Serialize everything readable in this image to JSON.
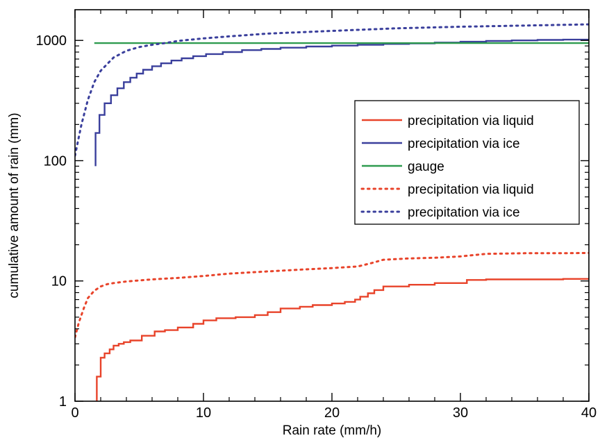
{
  "chart_data": {
    "type": "line",
    "title": "",
    "xlabel": "Rain rate (mm/h)",
    "ylabel": "cumulative amount of rain (mm)",
    "xlim": [
      0,
      40
    ],
    "ylim": [
      1,
      1800
    ],
    "yscale": "log",
    "x_ticks": [
      "0",
      "10",
      "20",
      "30",
      "40"
    ],
    "y_ticks": [
      "1",
      "10",
      "100",
      "1000"
    ],
    "grid": false,
    "legend_position": "center-right",
    "series": [
      {
        "name": "precipitation via liquid",
        "color": "#e8432a",
        "style": "solid",
        "step": true,
        "x": [
          1.7,
          1.7,
          2.0,
          2.3,
          2.7,
          3.0,
          3.4,
          3.8,
          4.3,
          5.2,
          6.2,
          7.0,
          8.0,
          9.2,
          10.0,
          11.0,
          12.5,
          14.0,
          15.0,
          16.0,
          17.5,
          18.5,
          20.0,
          21.0,
          21.8,
          22.2,
          22.8,
          23.3,
          24.0,
          26.0,
          28.0,
          30.5,
          32.0,
          34.0,
          36.0,
          38.0,
          40.0
        ],
        "y": [
          1.0,
          1.6,
          2.3,
          2.5,
          2.7,
          2.9,
          3.0,
          3.1,
          3.2,
          3.5,
          3.8,
          3.9,
          4.1,
          4.4,
          4.7,
          4.9,
          5.0,
          5.2,
          5.5,
          5.9,
          6.1,
          6.3,
          6.5,
          6.7,
          7.0,
          7.4,
          7.9,
          8.4,
          9.0,
          9.3,
          9.6,
          10.2,
          10.3,
          10.3,
          10.3,
          10.4,
          10.5
        ]
      },
      {
        "name": "precipitation via ice",
        "color": "#3a3f9c",
        "style": "solid",
        "step": true,
        "x": [
          1.6,
          1.6,
          1.9,
          2.3,
          2.8,
          3.3,
          3.8,
          4.3,
          4.8,
          5.3,
          6.0,
          6.7,
          7.5,
          8.3,
          9.2,
          10.2,
          11.5,
          13.0,
          14.5,
          16.0,
          18.0,
          20.0,
          22.0,
          24.0,
          26.0,
          28.0,
          30.0,
          32.0,
          34.0,
          36.0,
          38.0,
          40.0
        ],
        "y": [
          90,
          170,
          240,
          300,
          350,
          400,
          450,
          490,
          530,
          570,
          610,
          645,
          680,
          710,
          740,
          770,
          800,
          830,
          850,
          870,
          890,
          905,
          920,
          935,
          945,
          960,
          975,
          990,
          1000,
          1010,
          1015,
          1020
        ]
      },
      {
        "name": "gauge",
        "color": "#2e9b4f",
        "style": "solid",
        "step": false,
        "x": [
          1.5,
          40.0
        ],
        "y": [
          950,
          950
        ]
      },
      {
        "name": "precipitation via liquid",
        "color": "#e8432a",
        "style": "dotted",
        "step": false,
        "x": [
          0.0,
          0.3,
          0.7,
          1.0,
          1.5,
          2.0,
          2.5,
          3.0,
          4.0,
          5.0,
          6.0,
          8.0,
          10.0,
          12.0,
          15.0,
          18.0,
          20.0,
          22.0,
          23.0,
          24.0,
          26.0,
          28.0,
          30.0,
          32.0,
          35.0,
          38.0,
          40.0
        ],
        "y": [
          3.4,
          4.5,
          6.0,
          7.2,
          8.3,
          9.0,
          9.4,
          9.6,
          9.9,
          10.1,
          10.3,
          10.6,
          11.0,
          11.5,
          12.0,
          12.5,
          12.8,
          13.2,
          14.0,
          15.0,
          15.4,
          15.6,
          16.0,
          16.8,
          17.0,
          17.0,
          17.1
        ]
      },
      {
        "name": "precipitation via ice",
        "color": "#3a3f9c",
        "style": "dotted",
        "step": false,
        "x": [
          0.0,
          0.2,
          0.5,
          1.0,
          1.5,
          2.0,
          3.0,
          4.0,
          5.0,
          6.0,
          7.0,
          8.0,
          10.0,
          12.0,
          15.0,
          20.0,
          25.0,
          30.0,
          35.0,
          40.0
        ],
        "y": [
          110,
          140,
          200,
          320,
          450,
          560,
          720,
          820,
          880,
          920,
          950,
          990,
          1040,
          1080,
          1140,
          1200,
          1260,
          1300,
          1330,
          1360
        ]
      }
    ]
  }
}
